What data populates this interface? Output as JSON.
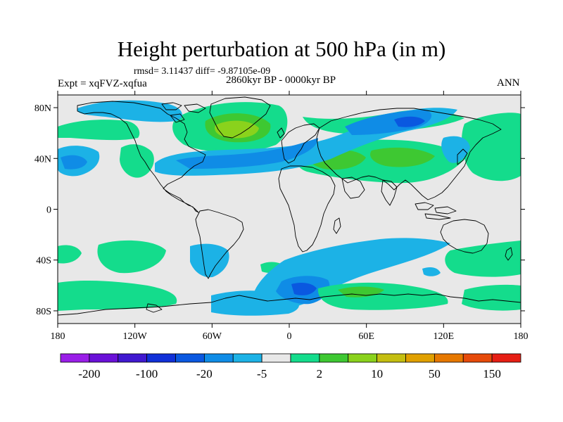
{
  "title": "Height perturbation at 500 hPa (in m)",
  "stats_line": "rmsd= 3.11437 diff= -9.87105e-09",
  "period": "2860kyr BP - 0000kyr BP",
  "experiment": "Expt = xqFVZ-xqfua",
  "season": "ANN",
  "map": {
    "projection": "cylindrical-equidistant",
    "lon_range": [
      -180,
      180
    ],
    "lat_range": [
      -90,
      90
    ],
    "background_color": "#e8e8e8",
    "coastline_color": "#000000",
    "lat_ticks": [
      {
        "value": 80,
        "label": "80N"
      },
      {
        "value": 40,
        "label": "40N"
      },
      {
        "value": 0,
        "label": "0"
      },
      {
        "value": -40,
        "label": "40S"
      },
      {
        "value": -80,
        "label": "80S"
      }
    ],
    "lon_ticks": [
      {
        "value": -180,
        "label": "180"
      },
      {
        "value": -120,
        "label": "120W"
      },
      {
        "value": -60,
        "label": "60W"
      },
      {
        "value": 0,
        "label": "0"
      },
      {
        "value": 60,
        "label": "60E"
      },
      {
        "value": 120,
        "label": "120E"
      },
      {
        "value": 180,
        "label": "180"
      }
    ]
  },
  "colorbar": {
    "colors": [
      "#9a1ee8",
      "#6a10d8",
      "#4018d0",
      "#1030d8",
      "#0a58e0",
      "#0f8ce6",
      "#1cb2e6",
      "#e8e8e8",
      "#14dc8c",
      "#3ec832",
      "#8ad21c",
      "#c4be10",
      "#e0a000",
      "#e67800",
      "#e64a0a",
      "#e61e14"
    ],
    "labels": [
      "-200",
      "-100",
      "-20",
      "-5",
      "2",
      "10",
      "50",
      "150"
    ]
  }
}
